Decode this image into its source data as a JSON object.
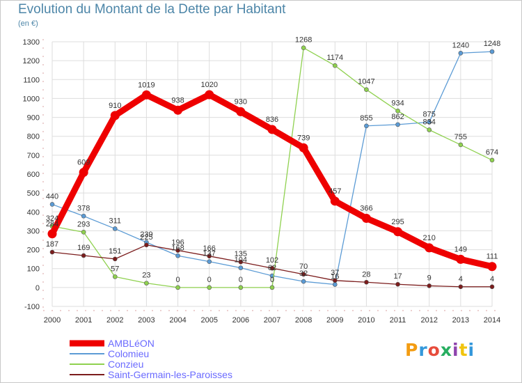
{
  "header": {
    "title": "Evolution du Montant de la Dette par Habitant",
    "subtitle": "(en €)"
  },
  "logo": {
    "text": "Proxiti",
    "colors": [
      "#f39c12",
      "#3498db",
      "#e74c3c",
      "#27ae60",
      "#8e44ad",
      "#f1c40f",
      "#3498db"
    ]
  },
  "chart_data": {
    "type": "line",
    "title": "Evolution du Montant de la Dette par Habitant",
    "subtitle": "(en €)",
    "xlabel": "",
    "ylabel": "",
    "x": [
      "2000",
      "2001",
      "2002",
      "2003",
      "2004",
      "2005",
      "2006",
      "2007",
      "2008",
      "2009",
      "2010",
      "2011",
      "2012",
      "2013",
      "2014"
    ],
    "ylim": [
      -100,
      1300
    ],
    "yticks": [
      -100,
      0,
      100,
      200,
      300,
      400,
      500,
      600,
      700,
      800,
      900,
      1000,
      1100,
      1200,
      1300
    ],
    "grid": true,
    "legend_position": "bottom-left",
    "series": [
      {
        "name": "AMBLéON",
        "color": "#ee0000",
        "thick": true,
        "values": [
          284,
          609,
          910,
          1019,
          938,
          1020,
          930,
          836,
          739,
          457,
          366,
          295,
          210,
          149,
          111
        ]
      },
      {
        "name": "Colomieu",
        "color": "#5b9bd5",
        "thick": false,
        "values": [
          440,
          378,
          311,
          239,
          168,
          137,
          104,
          62,
          32,
          16,
          855,
          862,
          875,
          1240,
          1248
        ]
      },
      {
        "name": "Conzieu",
        "color": "#8fd14f",
        "thick": false,
        "values": [
          324,
          293,
          57,
          23,
          0,
          0,
          0,
          0,
          1268,
          1174,
          1047,
          934,
          834,
          755,
          674
        ]
      },
      {
        "name": "Saint-Germain-les-Paroisses",
        "color": "#7b1c1c",
        "thick": false,
        "values": [
          187,
          169,
          151,
          225,
          196,
          166,
          135,
          102,
          70,
          37,
          28,
          17,
          9,
          4,
          4
        ]
      }
    ]
  }
}
